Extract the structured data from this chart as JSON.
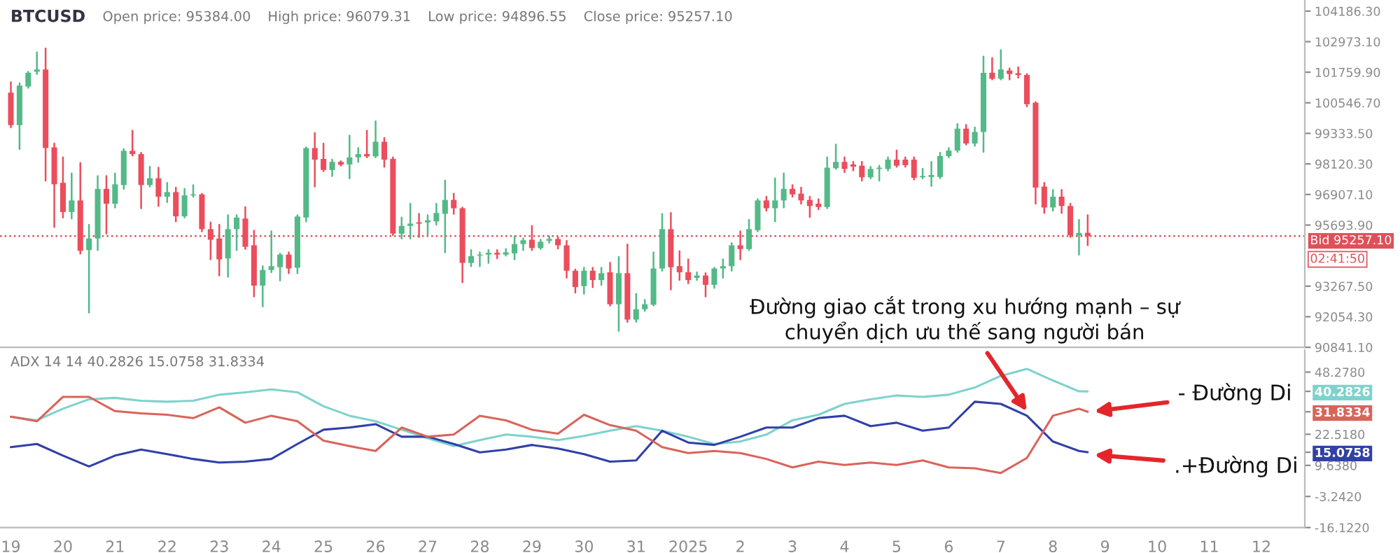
{
  "chart_data": [
    {
      "type": "candlestick",
      "xlim": [
        "2024-12-18T19:00",
        "2025-01-12T20:00"
      ],
      "ylim": [
        90841.1,
        104627
      ],
      "yticks": [
        {
          "value": 104186.3,
          "label": "104186.30"
        },
        {
          "value": 102973.1,
          "label": "102973.10"
        },
        {
          "value": 101759.9,
          "label": "101759.90"
        },
        {
          "value": 100546.7,
          "label": "100546.70"
        },
        {
          "value": 99333.5,
          "label": "99333.50"
        },
        {
          "value": 98120.3,
          "label": "98120.30"
        },
        {
          "value": 96907.1,
          "label": "96907.10"
        },
        {
          "value": 95693.9,
          "label": "95693.90"
        },
        {
          "value": 93267.5,
          "label": "93267.50"
        },
        {
          "value": 92054.3,
          "label": "92054.30"
        },
        {
          "value": 90841.1,
          "label": "90841.10"
        }
      ],
      "tick_labels": "y",
      "annotations": [
        "BTCUSD",
        "Open price: 95384.00",
        "High price: 96079.31",
        "Low price: 94896.55",
        "Close price: 95257.10",
        "02:41:50"
      ],
      "ref_lines": [
        {
          "axis": "y",
          "value": 95257.1,
          "label": "Bid 95257.10",
          "color": "#e0505a",
          "line_style": "dotted"
        }
      ],
      "x": [
        "2024-12-19T00:00",
        "2024-12-19T04:00",
        "2024-12-19T08:00",
        "2024-12-19T12:00",
        "2024-12-19T16:00",
        "2024-12-19T20:00",
        "2024-12-20T00:00",
        "2024-12-20T04:00",
        "2024-12-20T08:00",
        "2024-12-20T12:00",
        "2024-12-20T16:00",
        "2024-12-20T20:00",
        "2024-12-21T00:00",
        "2024-12-21T04:00",
        "2024-12-21T08:00",
        "2024-12-21T12:00",
        "2024-12-21T16:00",
        "2024-12-21T20:00",
        "2024-12-22T00:00",
        "2024-12-22T04:00",
        "2024-12-22T08:00",
        "2024-12-22T12:00",
        "2024-12-22T16:00",
        "2024-12-22T20:00",
        "2024-12-23T00:00",
        "2024-12-23T04:00",
        "2024-12-23T08:00",
        "2024-12-23T12:00",
        "2024-12-23T16:00",
        "2024-12-23T20:00",
        "2024-12-24T00:00",
        "2024-12-24T04:00",
        "2024-12-24T08:00",
        "2024-12-24T12:00",
        "2024-12-24T16:00",
        "2024-12-24T20:00",
        "2024-12-25T00:00",
        "2024-12-25T04:00",
        "2024-12-25T08:00",
        "2024-12-25T12:00",
        "2024-12-25T16:00",
        "2024-12-25T20:00",
        "2024-12-26T00:00",
        "2024-12-26T04:00",
        "2024-12-26T08:00",
        "2024-12-26T12:00",
        "2024-12-26T16:00",
        "2024-12-26T20:00",
        "2024-12-27T00:00",
        "2024-12-27T04:00",
        "2024-12-27T08:00",
        "2024-12-27T12:00",
        "2024-12-27T16:00",
        "2024-12-27T20:00",
        "2024-12-28T00:00",
        "2024-12-28T04:00",
        "2024-12-28T08:00",
        "2024-12-28T12:00",
        "2024-12-28T16:00",
        "2024-12-28T20:00",
        "2024-12-29T00:00",
        "2024-12-29T04:00",
        "2024-12-29T08:00",
        "2024-12-29T12:00",
        "2024-12-29T16:00",
        "2024-12-29T20:00",
        "2024-12-30T00:00",
        "2024-12-30T04:00",
        "2024-12-30T08:00",
        "2024-12-30T12:00",
        "2024-12-30T16:00",
        "2024-12-30T20:00",
        "2024-12-31T00:00",
        "2024-12-31T04:00",
        "2024-12-31T08:00",
        "2024-12-31T12:00",
        "2024-12-31T16:00",
        "2024-12-31T20:00",
        "2025-01-01T00:00",
        "2025-01-01T04:00",
        "2025-01-01T08:00",
        "2025-01-01T12:00",
        "2025-01-01T16:00",
        "2025-01-01T20:00",
        "2025-01-02T00:00",
        "2025-01-02T04:00",
        "2025-01-02T08:00",
        "2025-01-02T12:00",
        "2025-01-02T16:00",
        "2025-01-02T20:00",
        "2025-01-03T00:00",
        "2025-01-03T04:00",
        "2025-01-03T08:00",
        "2025-01-03T12:00",
        "2025-01-03T16:00",
        "2025-01-03T20:00",
        "2025-01-04T00:00",
        "2025-01-04T04:00",
        "2025-01-04T08:00",
        "2025-01-04T12:00",
        "2025-01-04T16:00",
        "2025-01-04T20:00",
        "2025-01-05T00:00",
        "2025-01-05T04:00",
        "2025-01-05T08:00",
        "2025-01-05T12:00",
        "2025-01-05T16:00",
        "2025-01-05T20:00",
        "2025-01-06T00:00",
        "2025-01-06T04:00",
        "2025-01-06T08:00",
        "2025-01-06T12:00",
        "2025-01-06T16:00",
        "2025-01-06T20:00",
        "2025-01-07T00:00",
        "2025-01-07T04:00",
        "2025-01-07T08:00",
        "2025-01-07T12:00",
        "2025-01-07T16:00",
        "2025-01-07T20:00",
        "2025-01-08T00:00",
        "2025-01-08T04:00",
        "2025-01-08T08:00",
        "2025-01-08T12:00",
        "2025-01-08T16:00"
      ],
      "ohlc": [
        [
          100950,
          101360,
          99570,
          99660
        ],
        [
          99660,
          101320,
          98710,
          101230
        ],
        [
          101190,
          101780,
          101140,
          101740
        ],
        [
          101780,
          102550,
          101690,
          101870
        ],
        [
          101870,
          102700,
          97460,
          98750
        ],
        [
          98780,
          98930,
          95620,
          97310
        ],
        [
          97370,
          98380,
          95990,
          96210
        ],
        [
          96210,
          97740,
          95950,
          96670
        ],
        [
          96670,
          98160,
          94560,
          94670
        ],
        [
          94700,
          95710,
          92220,
          95160
        ],
        [
          95160,
          97640,
          94700,
          97130
        ],
        [
          97130,
          97640,
          95350,
          96540
        ],
        [
          96540,
          97740,
          96390,
          97310
        ],
        [
          97280,
          98710,
          97130,
          98640
        ],
        [
          98640,
          99440,
          98450,
          98510
        ],
        [
          98510,
          98560,
          96360,
          97280
        ],
        [
          97280,
          98010,
          97220,
          97550
        ],
        [
          97550,
          97970,
          96450,
          96820
        ],
        [
          96820,
          97370,
          96600,
          97000
        ],
        [
          97000,
          97180,
          95840,
          96040
        ],
        [
          96040,
          97130,
          95990,
          96870
        ],
        [
          96870,
          97280,
          96820,
          96910
        ],
        [
          96910,
          96940,
          95440,
          95530
        ],
        [
          95530,
          95800,
          94330,
          95110
        ],
        [
          95160,
          95710,
          93690,
          94330
        ],
        [
          94370,
          96080,
          93640,
          95530
        ],
        [
          95530,
          96080,
          94700,
          95990
        ],
        [
          95950,
          96410,
          94740,
          94830
        ],
        [
          94890,
          95470,
          92860,
          93290
        ],
        [
          93290,
          94060,
          92460,
          93910
        ],
        [
          93910,
          95440,
          93820,
          94060
        ],
        [
          94020,
          94560,
          93490,
          94520
        ],
        [
          94520,
          94610,
          93780,
          93970
        ],
        [
          94000,
          96080,
          93780,
          96030
        ],
        [
          95990,
          98780,
          95840,
          98750
        ],
        [
          98750,
          99350,
          97220,
          98290
        ],
        [
          98320,
          98930,
          97830,
          97880
        ],
        [
          97880,
          98290,
          97640,
          98200
        ],
        [
          98200,
          98230,
          98050,
          98090
        ],
        [
          98100,
          99240,
          97550,
          98380
        ],
        [
          98380,
          98750,
          98200,
          98510
        ],
        [
          98510,
          99440,
          98380,
          98420
        ],
        [
          98420,
          99810,
          98380,
          99000
        ],
        [
          99000,
          99150,
          98010,
          98290
        ],
        [
          98320,
          98380,
          95290,
          95350
        ],
        [
          95350,
          95990,
          95160,
          95660
        ],
        [
          95660,
          96540,
          95160,
          95750
        ],
        [
          95800,
          96140,
          95220,
          95750
        ],
        [
          95800,
          96080,
          95310,
          95880
        ],
        [
          95840,
          96540,
          95710,
          96170
        ],
        [
          96140,
          97460,
          94610,
          96690
        ],
        [
          96690,
          96940,
          96140,
          96360
        ],
        [
          96360,
          96390,
          93420,
          94190
        ],
        [
          94190,
          94700,
          94060,
          94460
        ],
        [
          94480,
          94610,
          94060,
          94520
        ],
        [
          94520,
          94700,
          94190,
          94590
        ],
        [
          94590,
          94700,
          94370,
          94520
        ],
        [
          94520,
          94740,
          94480,
          94610
        ],
        [
          94570,
          95250,
          94330,
          94940
        ],
        [
          94940,
          95160,
          94700,
          95090
        ],
        [
          95110,
          95660,
          94700,
          94780
        ],
        [
          94780,
          95110,
          94740,
          95030
        ],
        [
          95070,
          95250,
          95000,
          95140
        ],
        [
          95140,
          95200,
          94760,
          94890
        ],
        [
          94890,
          95070,
          93600,
          93880
        ],
        [
          93880,
          93930,
          93010,
          93230
        ],
        [
          93270,
          94000,
          92960,
          93880
        ],
        [
          93880,
          94000,
          93230,
          93510
        ],
        [
          93510,
          94000,
          93320,
          93780
        ],
        [
          93820,
          94190,
          92500,
          92550
        ],
        [
          92550,
          94430,
          91490,
          93780
        ],
        [
          93780,
          94920,
          91850,
          91940
        ],
        [
          91940,
          92960,
          91850,
          92350
        ],
        [
          92350,
          92720,
          92280,
          92550
        ],
        [
          92530,
          94610,
          92500,
          93970
        ],
        [
          93970,
          96140,
          93880,
          95530
        ],
        [
          95530,
          96170,
          93140,
          94020
        ],
        [
          94060,
          94660,
          93510,
          93820
        ],
        [
          93820,
          94330,
          93380,
          93510
        ],
        [
          93600,
          93820,
          93510,
          93690
        ],
        [
          93690,
          93780,
          92860,
          93320
        ],
        [
          93320,
          94000,
          93200,
          93970
        ],
        [
          93970,
          94330,
          93600,
          94060
        ],
        [
          94060,
          94980,
          93880,
          94890
        ],
        [
          94890,
          95440,
          94330,
          94740
        ],
        [
          94740,
          95900,
          94700,
          95530
        ],
        [
          95490,
          96720,
          95440,
          96670
        ],
        [
          96670,
          96820,
          96260,
          96360
        ],
        [
          96360,
          97550,
          95840,
          96670
        ],
        [
          96670,
          97740,
          96390,
          97130
        ],
        [
          97130,
          97280,
          96820,
          96910
        ],
        [
          96940,
          97180,
          96540,
          96670
        ],
        [
          96690,
          96820,
          96010,
          96450
        ],
        [
          96540,
          96720,
          96320,
          96410
        ],
        [
          96410,
          98380,
          96360,
          97970
        ],
        [
          97950,
          98890,
          97920,
          98200
        ],
        [
          98200,
          98380,
          97790,
          97920
        ],
        [
          98100,
          98200,
          97860,
          98010
        ],
        [
          98050,
          98200,
          97460,
          97590
        ],
        [
          97590,
          98010,
          97550,
          97920
        ],
        [
          97920,
          98050,
          97460,
          97970
        ],
        [
          97920,
          98380,
          97860,
          98290
        ],
        [
          98290,
          98650,
          98010,
          98050
        ],
        [
          98290,
          98380,
          98010,
          98070
        ],
        [
          98290,
          98380,
          97500,
          97570
        ],
        [
          97590,
          97920,
          97550,
          97640
        ],
        [
          97600,
          98200,
          97240,
          97680
        ],
        [
          97600,
          98560,
          97550,
          98430
        ],
        [
          98430,
          98750,
          98380,
          98650
        ],
        [
          98650,
          99700,
          98600,
          99520
        ],
        [
          99520,
          99670,
          98890,
          98930
        ],
        [
          98930,
          99570,
          98840,
          99390
        ],
        [
          99390,
          102380,
          98600,
          101740
        ],
        [
          101740,
          102330,
          101470,
          101500
        ],
        [
          101500,
          102640,
          101470,
          101870
        ],
        [
          101830,
          101910,
          101470,
          101690
        ],
        [
          101720,
          101960,
          101540,
          101650
        ],
        [
          101650,
          101690,
          100400,
          100490
        ],
        [
          100550,
          100580,
          96540,
          97180
        ],
        [
          97220,
          97370,
          96170,
          96390
        ],
        [
          96390,
          97090,
          96260,
          96820
        ],
        [
          96820,
          97090,
          96170,
          96450
        ],
        [
          96450,
          96540,
          95220,
          95290
        ],
        [
          95290,
          95900,
          94520,
          95380
        ],
        [
          95384,
          96079.31,
          94896.55,
          95257.1
        ]
      ],
      "colors": [
        "#eb4d5c",
        "#53b987",
        "#53b987",
        "#53b987",
        "#eb4d5c",
        "#eb4d5c",
        "#eb4d5c",
        "#53b987",
        "#eb4d5c",
        "#53b987",
        "#53b987",
        "#eb4d5c",
        "#53b987",
        "#53b987",
        "#eb4d5c",
        "#eb4d5c",
        "#53b987",
        "#eb4d5c",
        "#53b987",
        "#eb4d5c",
        "#53b987",
        "#53b987",
        "#eb4d5c",
        "#eb4d5c",
        "#eb4d5c",
        "#53b987",
        "#53b987",
        "#eb4d5c",
        "#eb4d5c",
        "#53b987",
        "#53b987",
        "#53b987",
        "#eb4d5c",
        "#53b987",
        "#53b987",
        "#eb4d5c",
        "#eb4d5c",
        "#53b987",
        "#eb4d5c",
        "#53b987",
        "#53b987",
        "#eb4d5c",
        "#53b987",
        "#eb4d5c",
        "#eb4d5c",
        "#53b987",
        "#53b987",
        "#eb4d5c",
        "#53b987",
        "#53b987",
        "#53b987",
        "#eb4d5c",
        "#eb4d5c",
        "#53b987",
        "#53b987",
        "#53b987",
        "#eb4d5c",
        "#53b987",
        "#53b987",
        "#53b987",
        "#eb4d5c",
        "#53b987",
        "#53b987",
        "#eb4d5c",
        "#eb4d5c",
        "#eb4d5c",
        "#53b987",
        "#eb4d5c",
        "#53b987",
        "#eb4d5c",
        "#53b987",
        "#eb4d5c",
        "#53b987",
        "#53b987",
        "#53b987",
        "#53b987",
        "#eb4d5c",
        "#eb4d5c",
        "#eb4d5c",
        "#53b987",
        "#eb4d5c",
        "#53b987",
        "#53b987",
        "#53b987",
        "#eb4d5c",
        "#53b987",
        "#53b987",
        "#eb4d5c",
        "#53b987",
        "#53b987",
        "#eb4d5c",
        "#eb4d5c",
        "#eb4d5c",
        "#eb4d5c",
        "#53b987",
        "#53b987",
        "#eb4d5c",
        "#eb4d5c",
        "#eb4d5c",
        "#53b987",
        "#53b987",
        "#53b987",
        "#eb4d5c",
        "#eb4d5c",
        "#eb4d5c",
        "#53b987",
        "#53b987",
        "#53b987",
        "#53b987",
        "#53b987",
        "#eb4d5c",
        "#53b987",
        "#53b987",
        "#eb4d5c",
        "#53b987",
        "#eb4d5c",
        "#eb4d5c",
        "#eb4d5c",
        "#eb4d5c",
        "#eb4d5c",
        "#53b987",
        "#eb4d5c",
        "#eb4d5c",
        "#53b987",
        "#eb4d5c"
      ]
    },
    {
      "type": "line",
      "xlim": [
        "2024-12-18T19:00",
        "2025-01-12T20:00"
      ],
      "ylim": [
        -16.122,
        57.4
      ],
      "yticks": [
        {
          "value": 48.278,
          "label": "48.2780"
        },
        {
          "value": 40.2826,
          "label": "40.2826"
        },
        {
          "value": 31.8334,
          "label": "31.8334"
        },
        {
          "value": 22.518,
          "label": "22.5180"
        },
        {
          "value": 15.0758,
          "label": "15.0758"
        },
        {
          "value": 9.638,
          "label": "9.6380"
        },
        {
          "value": -3.242,
          "label": "-3.2420"
        },
        {
          "value": -16.122,
          "label": "-16.1220"
        }
      ],
      "xticks": [
        {
          "value": "2024-12-19",
          "label": "19"
        },
        {
          "value": "2024-12-20",
          "label": "20"
        },
        {
          "value": "2024-12-21",
          "label": "21"
        },
        {
          "value": "2024-12-22",
          "label": "22"
        },
        {
          "value": "2024-12-23",
          "label": "23"
        },
        {
          "value": "2024-12-24",
          "label": "24"
        },
        {
          "value": "2024-12-25",
          "label": "25"
        },
        {
          "value": "2024-12-26",
          "label": "26"
        },
        {
          "value": "2024-12-27",
          "label": "27"
        },
        {
          "value": "2024-12-28",
          "label": "28"
        },
        {
          "value": "2024-12-29",
          "label": "29"
        },
        {
          "value": "2024-12-30",
          "label": "30"
        },
        {
          "value": "2024-12-31",
          "label": "31"
        },
        {
          "value": "2025-01-01",
          "label": "2025"
        },
        {
          "value": "2025-01-02",
          "label": "2"
        },
        {
          "value": "2025-01-03",
          "label": "3"
        },
        {
          "value": "2025-01-04",
          "label": "4"
        },
        {
          "value": "2025-01-05",
          "label": "5"
        },
        {
          "value": "2025-01-06",
          "label": "6"
        },
        {
          "value": "2025-01-07",
          "label": "7"
        },
        {
          "value": "2025-01-08",
          "label": "8"
        },
        {
          "value": "2025-01-09",
          "label": "9"
        },
        {
          "value": "2025-01-10",
          "label": "10"
        },
        {
          "value": "2025-01-11",
          "label": "11"
        },
        {
          "value": "2025-01-12",
          "label": "12"
        }
      ],
      "annotations": [
        "ADX 14 14 40.2826 15.0758 31.8334",
        {
          "text": "Đường giao cắt trong xu hướng mạnh – sự\nchuyển dịch ưu thế sang người bán",
          "x": "2025-01-07T12:00",
          "y": 32.1
        },
        {
          "text": "- Đường Di",
          "x": "2025-01-08T19:00",
          "y": 32
        },
        {
          "text": ".+Đường Di",
          "x": "2025-01-08T19:00",
          "y": 14
        }
      ],
      "x": [
        "2024-12-19T00:00",
        "2024-12-19T12:00",
        "2024-12-20T00:00",
        "2024-12-20T12:00",
        "2024-12-21T00:00",
        "2024-12-21T12:00",
        "2024-12-22T00:00",
        "2024-12-22T12:00",
        "2024-12-23T00:00",
        "2024-12-23T12:00",
        "2024-12-24T00:00",
        "2024-12-24T12:00",
        "2024-12-25T00:00",
        "2024-12-25T12:00",
        "2024-12-26T00:00",
        "2024-12-26T12:00",
        "2024-12-27T00:00",
        "2024-12-27T12:00",
        "2024-12-28T00:00",
        "2024-12-28T12:00",
        "2024-12-29T00:00",
        "2024-12-29T12:00",
        "2024-12-30T00:00",
        "2024-12-30T12:00",
        "2024-12-31T00:00",
        "2024-12-31T12:00",
        "2025-01-01T00:00",
        "2025-01-01T12:00",
        "2025-01-02T00:00",
        "2025-01-02T12:00",
        "2025-01-03T00:00",
        "2025-01-03T12:00",
        "2025-01-04T00:00",
        "2025-01-04T12:00",
        "2025-01-05T00:00",
        "2025-01-05T12:00",
        "2025-01-06T00:00",
        "2025-01-06T12:00",
        "2025-01-07T00:00",
        "2025-01-07T12:00",
        "2025-01-08T00:00",
        "2025-01-08T12:00",
        "2025-01-08T16:00"
      ],
      "series": [
        {
          "color": "#7dd3cc",
          "values": [
            29.8,
            28.3,
            33.1,
            37.0,
            37.6,
            36.4,
            36.0,
            36.4,
            38.9,
            39.9,
            41.1,
            39.9,
            34.1,
            30.2,
            27.9,
            24.4,
            20.9,
            17.6,
            20.1,
            22.4,
            21.5,
            20.1,
            21.8,
            24.0,
            25.9,
            24.0,
            21.5,
            18.5,
            19.5,
            22.4,
            28.3,
            30.6,
            35.1,
            37.0,
            38.6,
            38.0,
            38.9,
            41.9,
            46.7,
            49.6,
            44.8,
            40.3,
            40.2826
          ]
        },
        {
          "color": "#3140a8",
          "values": [
            17.2,
            18.5,
            13.7,
            9.2,
            13.7,
            16.2,
            14.3,
            12.3,
            10.8,
            11.2,
            12.3,
            18.5,
            24.4,
            25.3,
            26.7,
            21.5,
            21.5,
            18.5,
            15.0,
            16.2,
            18.1,
            16.6,
            14.3,
            11.2,
            11.7,
            24.0,
            19.1,
            18.1,
            21.5,
            25.3,
            25.3,
            29.2,
            30.2,
            25.9,
            27.3,
            24.0,
            25.3,
            36.0,
            35.1,
            30.2,
            19.5,
            15.6,
            15.0758
          ]
        },
        {
          "color": "#d9645a",
          "values": [
            29.8,
            27.9,
            38.0,
            38.0,
            32.1,
            31.2,
            30.6,
            29.2,
            33.7,
            27.3,
            30.2,
            27.9,
            19.9,
            17.6,
            15.6,
            25.3,
            21.5,
            22.4,
            30.2,
            28.3,
            24.4,
            22.8,
            30.6,
            26.3,
            24.0,
            17.2,
            14.7,
            15.6,
            14.7,
            12.3,
            8.8,
            11.2,
            9.8,
            10.8,
            9.8,
            11.7,
            8.8,
            8.4,
            6.5,
            12.7,
            30.2,
            33.1,
            31.8334
          ]
        }
      ]
    }
  ]
}
